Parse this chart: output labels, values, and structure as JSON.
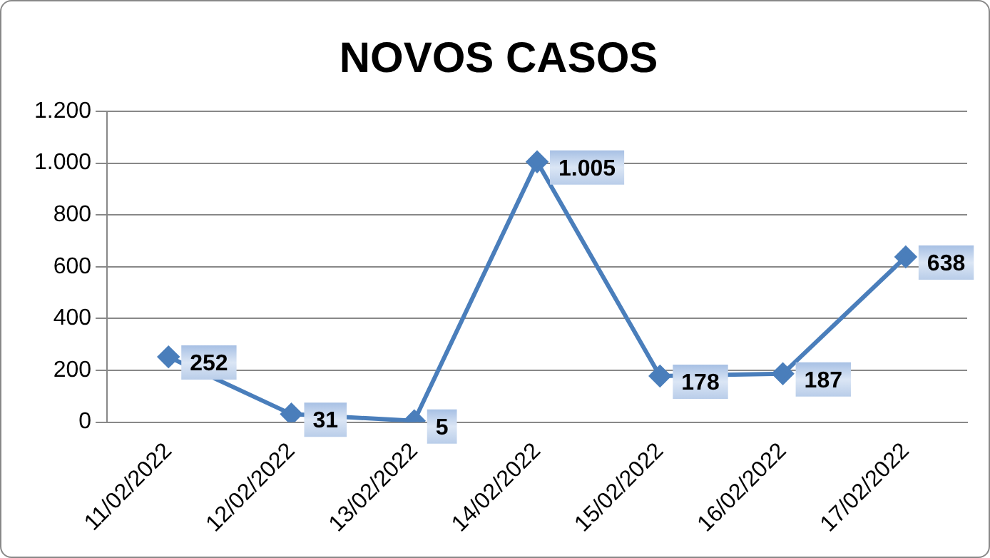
{
  "chart_data": {
    "type": "line",
    "title": "NOVOS CASOS",
    "categories": [
      "11/02/2022",
      "12/02/2022",
      "13/02/2022",
      "14/02/2022",
      "15/02/2022",
      "16/02/2022",
      "17/02/2022"
    ],
    "series": [
      {
        "color": "#4a7ebb",
        "values": [
          252,
          31,
          5,
          1005,
          178,
          187,
          638
        ],
        "value_labels": [
          "252",
          "31",
          "5",
          "1.005",
          "178",
          "187",
          "638"
        ]
      }
    ],
    "ylim": [
      0,
      1200
    ],
    "yticks": [
      {
        "value": 0,
        "label": "0"
      },
      {
        "value": 200,
        "label": "200"
      },
      {
        "value": 400,
        "label": "400"
      },
      {
        "value": 600,
        "label": "600"
      },
      {
        "value": 800,
        "label": "800"
      },
      {
        "value": 1000,
        "label": "1.000"
      },
      {
        "value": 1200,
        "label": "1.200"
      }
    ],
    "grid": "y",
    "legend": false,
    "marker": "diamond",
    "line_style": "solid"
  }
}
